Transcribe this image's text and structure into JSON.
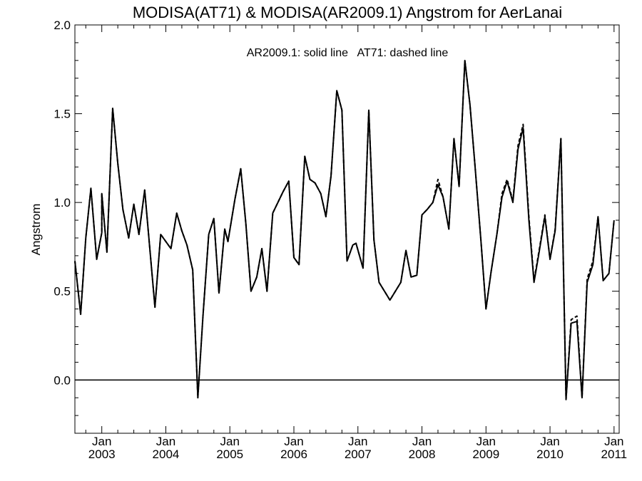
{
  "chart_data": {
    "type": "line",
    "title": "MODISA(AT71) & MODISA(AR2009.1)  Angstrom for AerLanai",
    "annotation": "AR2009.1: solid line   AT71: dashed line",
    "ylabel": "Angstrom",
    "xlabel": "",
    "xlim": [
      2002.58,
      2011.08
    ],
    "ylim": [
      -0.3,
      2.0
    ],
    "yticks": [
      {
        "value": -0.3,
        "label": ""
      },
      {
        "value": 0.0,
        "label": "0.0"
      },
      {
        "value": 0.5,
        "label": "0.5"
      },
      {
        "value": 1.0,
        "label": "1.0"
      },
      {
        "value": 1.5,
        "label": "1.5"
      },
      {
        "value": 2.0,
        "label": "2.0"
      }
    ],
    "xticks": [
      {
        "value": 2003,
        "month": "Jan",
        "year": "2003"
      },
      {
        "value": 2004,
        "month": "Jan",
        "year": "2004"
      },
      {
        "value": 2005,
        "month": "Jan",
        "year": "2005"
      },
      {
        "value": 2006,
        "month": "Jan",
        "year": "2006"
      },
      {
        "value": 2007,
        "month": "Jan",
        "year": "2007"
      },
      {
        "value": 2008,
        "month": "Jan",
        "year": "2008"
      },
      {
        "value": 2009,
        "month": "Jan",
        "year": "2009"
      },
      {
        "value": 2010,
        "month": "Jan",
        "year": "2010"
      },
      {
        "value": 2011,
        "month": "Jan",
        "year": "2011"
      }
    ],
    "reference_line": 0.0,
    "series": [
      {
        "name": "AR2009.1",
        "style": "solid",
        "points": [
          [
            2002.58,
            0.67
          ],
          [
            2002.67,
            0.37
          ],
          [
            2002.75,
            0.8
          ],
          [
            2002.83,
            1.08
          ],
          [
            2002.92,
            0.68
          ],
          [
            2003.0,
            0.83
          ],
          [
            2003.0,
            1.05
          ],
          [
            2003.08,
            0.72
          ],
          [
            2003.17,
            1.53
          ],
          [
            2003.25,
            1.22
          ],
          [
            2003.33,
            0.96
          ],
          [
            2003.42,
            0.8
          ],
          [
            2003.5,
            0.99
          ],
          [
            2003.58,
            0.82
          ],
          [
            2003.67,
            1.07
          ],
          [
            2003.75,
            0.74
          ],
          [
            2003.83,
            0.41
          ],
          [
            2003.92,
            0.82
          ],
          [
            2004.08,
            0.74
          ],
          [
            2004.17,
            0.94
          ],
          [
            2004.25,
            0.84
          ],
          [
            2004.33,
            0.76
          ],
          [
            2004.42,
            0.62
          ],
          [
            2004.5,
            -0.1
          ],
          [
            2004.58,
            0.36
          ],
          [
            2004.67,
            0.82
          ],
          [
            2004.75,
            0.91
          ],
          [
            2004.83,
            0.49
          ],
          [
            2004.92,
            0.85
          ],
          [
            2004.97,
            0.78
          ],
          [
            2005.08,
            1.02
          ],
          [
            2005.17,
            1.19
          ],
          [
            2005.25,
            0.88
          ],
          [
            2005.33,
            0.5
          ],
          [
            2005.42,
            0.58
          ],
          [
            2005.5,
            0.74
          ],
          [
            2005.58,
            0.5
          ],
          [
            2005.67,
            0.94
          ],
          [
            2005.75,
            1.0
          ],
          [
            2005.83,
            1.06
          ],
          [
            2005.92,
            1.12
          ],
          [
            2006.0,
            0.69
          ],
          [
            2006.08,
            0.65
          ],
          [
            2006.17,
            1.26
          ],
          [
            2006.25,
            1.13
          ],
          [
            2006.33,
            1.11
          ],
          [
            2006.42,
            1.05
          ],
          [
            2006.5,
            0.92
          ],
          [
            2006.58,
            1.15
          ],
          [
            2006.67,
            1.63
          ],
          [
            2006.75,
            1.52
          ],
          [
            2006.83,
            0.67
          ],
          [
            2006.92,
            0.76
          ],
          [
            2006.97,
            0.77
          ],
          [
            2007.08,
            0.63
          ],
          [
            2007.17,
            1.52
          ],
          [
            2007.25,
            0.79
          ],
          [
            2007.33,
            0.55
          ],
          [
            2007.5,
            0.45
          ],
          [
            2007.67,
            0.55
          ],
          [
            2007.75,
            0.73
          ],
          [
            2007.83,
            0.58
          ],
          [
            2007.92,
            0.59
          ],
          [
            2008.0,
            0.93
          ],
          [
            2008.08,
            0.96
          ],
          [
            2008.17,
            1.0
          ],
          [
            2008.25,
            1.1
          ],
          [
            2008.33,
            1.03
          ],
          [
            2008.42,
            0.85
          ],
          [
            2008.5,
            1.36
          ],
          [
            2008.58,
            1.09
          ],
          [
            2008.67,
            1.8
          ],
          [
            2008.75,
            1.55
          ],
          [
            2008.83,
            1.2
          ],
          [
            2008.92,
            0.79
          ],
          [
            2009.0,
            0.4
          ],
          [
            2009.08,
            0.61
          ],
          [
            2009.17,
            0.82
          ],
          [
            2009.25,
            1.03
          ],
          [
            2009.33,
            1.12
          ],
          [
            2009.42,
            1.0
          ],
          [
            2009.5,
            1.3
          ],
          [
            2009.58,
            1.42
          ],
          [
            2009.67,
            0.9
          ],
          [
            2009.75,
            0.55
          ],
          [
            2009.83,
            0.72
          ],
          [
            2009.92,
            0.92
          ],
          [
            2010.0,
            0.68
          ],
          [
            2010.08,
            0.84
          ],
          [
            2010.17,
            1.36
          ],
          [
            2010.25,
            -0.11
          ],
          [
            2010.33,
            0.32
          ],
          [
            2010.42,
            0.33
          ],
          [
            2010.5,
            -0.1
          ],
          [
            2010.58,
            0.55
          ],
          [
            2010.67,
            0.65
          ],
          [
            2010.75,
            0.92
          ],
          [
            2010.83,
            0.56
          ],
          [
            2010.92,
            0.6
          ],
          [
            2011.0,
            0.9
          ]
        ]
      },
      {
        "name": "AT71",
        "style": "dashed",
        "points": [
          [
            2002.58,
            0.67
          ],
          [
            2002.67,
            0.37
          ],
          [
            2002.75,
            0.8
          ],
          [
            2002.83,
            1.08
          ],
          [
            2002.92,
            0.68
          ],
          [
            2003.0,
            0.83
          ],
          [
            2003.0,
            1.05
          ],
          [
            2003.08,
            0.72
          ],
          [
            2003.17,
            1.53
          ],
          [
            2003.25,
            1.22
          ],
          [
            2003.33,
            0.96
          ],
          [
            2003.42,
            0.8
          ],
          [
            2003.5,
            0.99
          ],
          [
            2003.58,
            0.82
          ],
          [
            2003.67,
            1.07
          ],
          [
            2003.75,
            0.74
          ],
          [
            2003.83,
            0.41
          ],
          [
            2003.92,
            0.82
          ],
          [
            2004.08,
            0.74
          ],
          [
            2004.17,
            0.94
          ],
          [
            2004.25,
            0.84
          ],
          [
            2004.33,
            0.76
          ],
          [
            2004.42,
            0.62
          ],
          [
            2004.5,
            -0.1
          ],
          [
            2004.58,
            0.36
          ],
          [
            2004.67,
            0.82
          ],
          [
            2004.75,
            0.91
          ],
          [
            2004.83,
            0.49
          ],
          [
            2004.92,
            0.85
          ],
          [
            2004.97,
            0.78
          ],
          [
            2005.08,
            1.02
          ],
          [
            2005.17,
            1.19
          ],
          [
            2005.25,
            0.88
          ],
          [
            2005.33,
            0.5
          ],
          [
            2005.42,
            0.58
          ],
          [
            2005.5,
            0.74
          ],
          [
            2005.58,
            0.5
          ],
          [
            2005.67,
            0.94
          ],
          [
            2005.75,
            1.0
          ],
          [
            2005.83,
            1.06
          ],
          [
            2005.92,
            1.12
          ],
          [
            2006.0,
            0.69
          ],
          [
            2006.08,
            0.65
          ],
          [
            2006.17,
            1.26
          ],
          [
            2006.25,
            1.13
          ],
          [
            2006.33,
            1.11
          ],
          [
            2006.42,
            1.05
          ],
          [
            2006.5,
            0.92
          ],
          [
            2006.58,
            1.15
          ],
          [
            2006.67,
            1.63
          ],
          [
            2006.75,
            1.52
          ],
          [
            2006.83,
            0.67
          ],
          [
            2006.92,
            0.76
          ],
          [
            2006.97,
            0.77
          ],
          [
            2007.08,
            0.63
          ],
          [
            2007.17,
            1.52
          ],
          [
            2007.25,
            0.79
          ],
          [
            2007.33,
            0.55
          ],
          [
            2007.5,
            0.45
          ],
          [
            2007.67,
            0.55
          ],
          [
            2007.75,
            0.73
          ],
          [
            2007.83,
            0.58
          ],
          [
            2007.92,
            0.59
          ],
          [
            2008.0,
            0.93
          ],
          [
            2008.08,
            0.96
          ],
          [
            2008.17,
            1.0
          ],
          [
            2008.25,
            1.13
          ],
          [
            2008.33,
            1.03
          ],
          [
            2008.42,
            0.85
          ],
          [
            2008.5,
            1.36
          ],
          [
            2008.58,
            1.09
          ],
          [
            2008.67,
            1.8
          ],
          [
            2008.75,
            1.55
          ],
          [
            2008.83,
            1.2
          ],
          [
            2008.92,
            0.79
          ],
          [
            2009.0,
            0.4
          ],
          [
            2009.08,
            0.61
          ],
          [
            2009.17,
            0.82
          ],
          [
            2009.25,
            1.05
          ],
          [
            2009.33,
            1.13
          ],
          [
            2009.42,
            1.01
          ],
          [
            2009.5,
            1.32
          ],
          [
            2009.58,
            1.44
          ],
          [
            2009.67,
            0.92
          ],
          [
            2009.75,
            0.56
          ],
          [
            2009.83,
            0.73
          ],
          [
            2009.92,
            0.93
          ],
          [
            2010.0,
            0.68
          ],
          [
            2010.08,
            0.85
          ],
          [
            2010.17,
            1.36
          ],
          [
            2010.25,
            -0.11
          ],
          [
            2010.33,
            0.34
          ],
          [
            2010.42,
            0.36
          ],
          [
            2010.5,
            -0.1
          ],
          [
            2010.58,
            0.57
          ],
          [
            2010.67,
            0.67
          ],
          [
            2010.75,
            0.92
          ],
          [
            2010.83,
            0.56
          ],
          [
            2010.92,
            0.6
          ],
          [
            2011.0,
            0.9
          ]
        ]
      }
    ]
  }
}
